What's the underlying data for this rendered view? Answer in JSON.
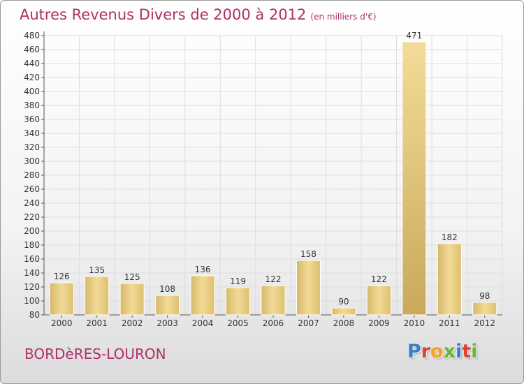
{
  "header": {
    "title": "Autres Revenus Divers de 2000 à 2012",
    "subtitle": "(en milliers d'€)"
  },
  "footer": {
    "commune": "BORDèRES-LOURON",
    "logo_letters": [
      "P",
      "r",
      "o",
      "x",
      "i",
      "t",
      "i"
    ],
    "logo_colors": [
      "#3a7cc4",
      "#e53c2e",
      "#f6a31b",
      "#69b538",
      "#3a7cc4",
      "#e53c2e",
      "#69b538"
    ]
  },
  "chart_data": {
    "type": "bar",
    "title": "Autres Revenus Divers de 2000 à 2012",
    "categories": [
      "2000",
      "2001",
      "2002",
      "2003",
      "2004",
      "2005",
      "2006",
      "2007",
      "2008",
      "2009",
      "2010",
      "2011",
      "2012"
    ],
    "values": [
      126,
      135,
      125,
      108,
      136,
      119,
      122,
      158,
      90,
      122,
      471,
      182,
      98
    ],
    "ylim": [
      80,
      480
    ],
    "yticks": [
      80,
      100,
      120,
      140,
      160,
      180,
      200,
      220,
      240,
      260,
      280,
      300,
      320,
      340,
      360,
      380,
      400,
      420,
      440,
      460,
      480
    ],
    "grid": true,
    "bar_color": "#e8cf86"
  }
}
